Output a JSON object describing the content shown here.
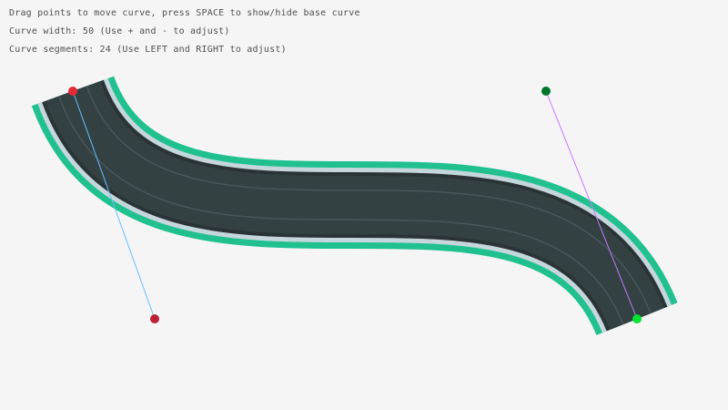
{
  "instructions": {
    "line1": "Drag points to move curve, press SPACE to show/hide base curve",
    "line2": "Curve width: 50 (Use + and - to adjust)",
    "line3": "Curve segments: 24 (Use LEFT and RIGHT to adjust)"
  },
  "curve_width": 50,
  "curve_segments": 24,
  "colors": {
    "background": "#f5f5f5",
    "road_border": "#20c08f",
    "road_edge": "#c5d6dc",
    "road_shadow": "#2a3436",
    "road": "#334143",
    "lane_line": "#46565a",
    "start_handle_line": "#66bfff",
    "end_handle_line": "#c87aff",
    "start_point": "#e62937",
    "start_tangent_point": "#be2137",
    "end_point": "#00e430",
    "end_tangent_point": "#00752c"
  }
}
